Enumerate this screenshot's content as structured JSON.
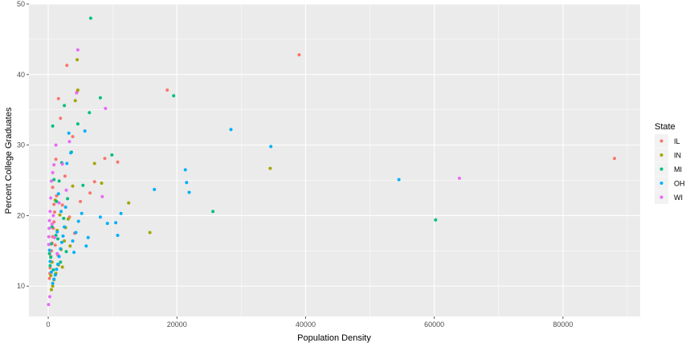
{
  "chart_data": {
    "type": "scatter",
    "title": "",
    "xlabel": "Population Density",
    "ylabel": "Percent College Graduates",
    "xlim": [
      -3000,
      92000
    ],
    "ylim": [
      5.7,
      50
    ],
    "x_ticks": [
      0,
      20000,
      40000,
      60000,
      80000
    ],
    "x_tick_labels": [
      "0",
      "20000",
      "40000",
      "60000",
      "80000"
    ],
    "y_ticks": [
      10,
      20,
      30,
      40,
      50
    ],
    "y_tick_labels": [
      "10",
      "20",
      "30",
      "40",
      "50"
    ],
    "grid": true,
    "background": "#ebebeb",
    "legend": {
      "title": "State",
      "position": "right"
    },
    "series": [
      {
        "name": "IL",
        "color": "#F8766D",
        "points": [
          [
            88000,
            28.1
          ],
          [
            39000,
            42.8
          ],
          [
            18500,
            37.8
          ],
          [
            10800,
            27.6
          ],
          [
            8800,
            28.1
          ],
          [
            7200,
            24.8
          ],
          [
            6500,
            23.2
          ],
          [
            5000,
            22.0
          ],
          [
            4500,
            37.6
          ],
          [
            3800,
            31.2
          ],
          [
            2900,
            41.3
          ],
          [
            1900,
            33.8
          ],
          [
            1600,
            36.6
          ],
          [
            1200,
            28.0
          ],
          [
            1000,
            20.5
          ],
          [
            900,
            19.1
          ],
          [
            800,
            18.2
          ],
          [
            700,
            17.0
          ],
          [
            600,
            16.1
          ],
          [
            500,
            15.0
          ],
          [
            400,
            14.2
          ],
          [
            350,
            13.5
          ],
          [
            300,
            12.6
          ],
          [
            250,
            11.8
          ],
          [
            200,
            11.1
          ],
          [
            1300,
            22.8
          ],
          [
            2200,
            21.5
          ],
          [
            2600,
            25.6
          ],
          [
            3300,
            19.8
          ],
          [
            4100,
            17.5
          ],
          [
            1100,
            15.8
          ],
          [
            1500,
            14.4
          ],
          [
            900,
            21.6
          ],
          [
            700,
            24.0
          ]
        ]
      },
      {
        "name": "IN",
        "color": "#A3A500",
        "points": [
          [
            34500,
            26.7
          ],
          [
            15800,
            17.6
          ],
          [
            12500,
            21.8
          ],
          [
            8300,
            24.6
          ],
          [
            7200,
            27.4
          ],
          [
            4500,
            42.1
          ],
          [
            4200,
            36.3
          ],
          [
            4600,
            37.8
          ],
          [
            3800,
            24.2
          ],
          [
            3100,
            19.5
          ],
          [
            2500,
            16.4
          ],
          [
            2000,
            15.2
          ],
          [
            1600,
            13.0
          ],
          [
            1200,
            11.8
          ],
          [
            900,
            10.9
          ],
          [
            700,
            10.0
          ],
          [
            500,
            9.5
          ],
          [
            1400,
            17.9
          ],
          [
            1800,
            20.1
          ],
          [
            2700,
            18.3
          ],
          [
            3400,
            15.7
          ],
          [
            1100,
            22.2
          ],
          [
            600,
            13.4
          ],
          [
            400,
            11.5
          ],
          [
            2200,
            12.7
          ]
        ]
      },
      {
        "name": "MI",
        "color": "#00BF7D",
        "points": [
          [
            60200,
            19.4
          ],
          [
            25600,
            20.6
          ],
          [
            19500,
            37.0
          ],
          [
            9900,
            28.6
          ],
          [
            8100,
            36.7
          ],
          [
            6600,
            48.0
          ],
          [
            6400,
            34.6
          ],
          [
            5400,
            24.3
          ],
          [
            4600,
            33.0
          ],
          [
            3600,
            29.0
          ],
          [
            2500,
            35.6
          ],
          [
            2100,
            27.5
          ],
          [
            1700,
            24.9
          ],
          [
            1300,
            22.0
          ],
          [
            900,
            25.1
          ],
          [
            700,
            32.7
          ],
          [
            600,
            18.4
          ],
          [
            500,
            16.0
          ],
          [
            400,
            14.1
          ],
          [
            300,
            12.9
          ],
          [
            200,
            14.6
          ],
          [
            1500,
            16.7
          ],
          [
            1900,
            13.4
          ],
          [
            2400,
            19.6
          ],
          [
            3000,
            22.4
          ],
          [
            1100,
            11.6
          ],
          [
            800,
            12.3
          ],
          [
            2800,
            14.9
          ],
          [
            1200,
            17.2
          ]
        ]
      },
      {
        "name": "OH",
        "color": "#00B0F6",
        "points": [
          [
            54500,
            25.1
          ],
          [
            34600,
            29.8
          ],
          [
            28400,
            32.2
          ],
          [
            21300,
            26.5
          ],
          [
            21500,
            24.7
          ],
          [
            21900,
            23.3
          ],
          [
            16500,
            23.7
          ],
          [
            11300,
            20.3
          ],
          [
            10500,
            19.0
          ],
          [
            10800,
            17.2
          ],
          [
            9200,
            18.9
          ],
          [
            8100,
            19.8
          ],
          [
            5900,
            15.7
          ],
          [
            5700,
            32.0
          ],
          [
            5200,
            20.3
          ],
          [
            4700,
            19.2
          ],
          [
            4300,
            17.6
          ],
          [
            3800,
            16.4
          ],
          [
            3500,
            28.9
          ],
          [
            3200,
            31.7
          ],
          [
            2900,
            27.4
          ],
          [
            2700,
            21.2
          ],
          [
            2500,
            18.4
          ],
          [
            2300,
            17.1
          ],
          [
            2100,
            16.2
          ],
          [
            1900,
            15.3
          ],
          [
            1700,
            14.2
          ],
          [
            1500,
            13.1
          ],
          [
            1300,
            12.4
          ],
          [
            1100,
            11.6
          ],
          [
            900,
            11.0
          ],
          [
            700,
            10.4
          ],
          [
            500,
            12.0
          ],
          [
            300,
            13.5
          ],
          [
            200,
            15.1
          ],
          [
            4000,
            14.8
          ],
          [
            6200,
            16.9
          ],
          [
            2000,
            20.6
          ],
          [
            1600,
            23.1
          ],
          [
            1400,
            17.7
          ]
        ]
      },
      {
        "name": "WI",
        "color": "#E76BF3",
        "points": [
          [
            63900,
            25.3
          ],
          [
            8900,
            35.2
          ],
          [
            8400,
            22.7
          ],
          [
            4600,
            43.5
          ],
          [
            4400,
            37.4
          ],
          [
            3300,
            30.5
          ],
          [
            2800,
            23.6
          ],
          [
            2200,
            27.3
          ],
          [
            1700,
            21.8
          ],
          [
            1200,
            30.0
          ],
          [
            900,
            27.2
          ],
          [
            700,
            26.1
          ],
          [
            500,
            24.9
          ],
          [
            400,
            22.5
          ],
          [
            300,
            20.6
          ],
          [
            200,
            19.3
          ],
          [
            150,
            18.2
          ],
          [
            100,
            17.0
          ],
          [
            80,
            15.9
          ],
          [
            50,
            7.4
          ],
          [
            250,
            8.5
          ],
          [
            600,
            18.8
          ],
          [
            1000,
            16.9
          ],
          [
            1400,
            14.6
          ],
          [
            800,
            20.0
          ]
        ]
      }
    ]
  }
}
